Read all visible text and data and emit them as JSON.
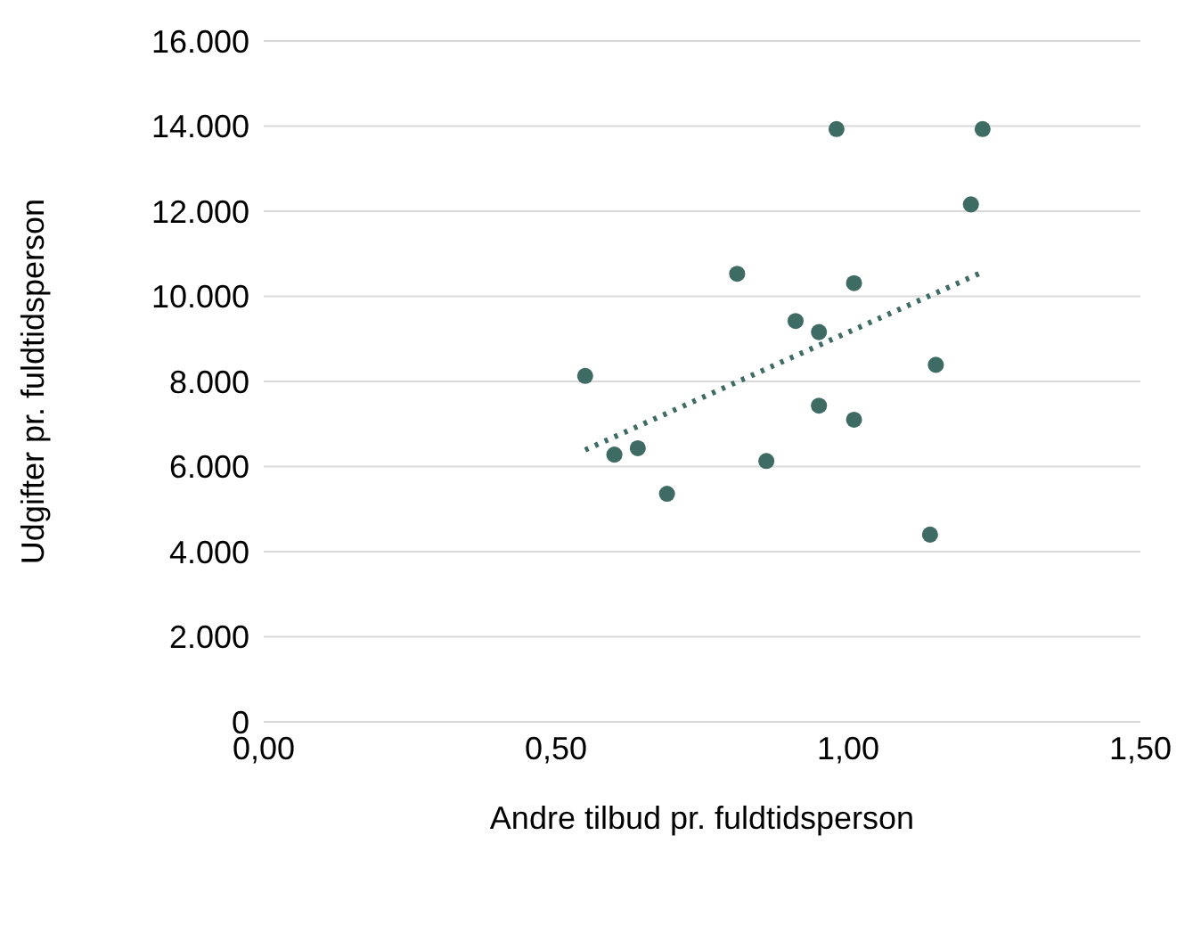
{
  "chart_data": {
    "type": "scatter",
    "xlabel": "Andre tilbud pr. fuldtidsperson",
    "ylabel": "Udgifter pr. fuldtidsperson",
    "xlim": [
      0,
      1.5
    ],
    "xticks": [
      {
        "value": 0,
        "label": "0,00"
      },
      {
        "value": 0.5,
        "label": "0,50"
      },
      {
        "value": 1,
        "label": "1,00"
      },
      {
        "value": 1.5,
        "label": "1,50"
      }
    ],
    "ylim": [
      0,
      16000
    ],
    "yticks": [
      0,
      {
        "value": 2000,
        "label": "2.000"
      },
      {
        "value": 4000,
        "label": "4.000"
      },
      {
        "value": 6000,
        "label": "6.000"
      },
      {
        "value": 8000,
        "label": "8.000"
      },
      {
        "value": 10000,
        "label": "10.000"
      },
      {
        "value": 12000,
        "label": "12.000"
      },
      {
        "value": 14000,
        "label": "14.000"
      },
      {
        "value": 16000,
        "label": "16.000"
      }
    ],
    "grid": "y",
    "series": [
      {
        "color": "#3e6b63",
        "marker": "circle",
        "x": [
          0.55,
          0.6,
          0.64,
          0.69,
          0.81,
          0.86,
          0.91,
          0.95,
          0.95,
          0.98,
          1.01,
          1.01,
          1.14,
          1.15,
          1.21,
          1.23
        ],
        "values": [
          8130,
          6280,
          6430,
          5360,
          10530,
          6130,
          9420,
          9160,
          7430,
          13930,
          10310,
          7100,
          4400,
          8390,
          12160,
          13930
        ]
      },
      {
        "type": "line",
        "color": "#3e6b63",
        "marker": "none",
        "line_style": "dotted",
        "x": [
          0.55,
          1.23
        ],
        "values": [
          6390,
          10570
        ]
      }
    ]
  }
}
